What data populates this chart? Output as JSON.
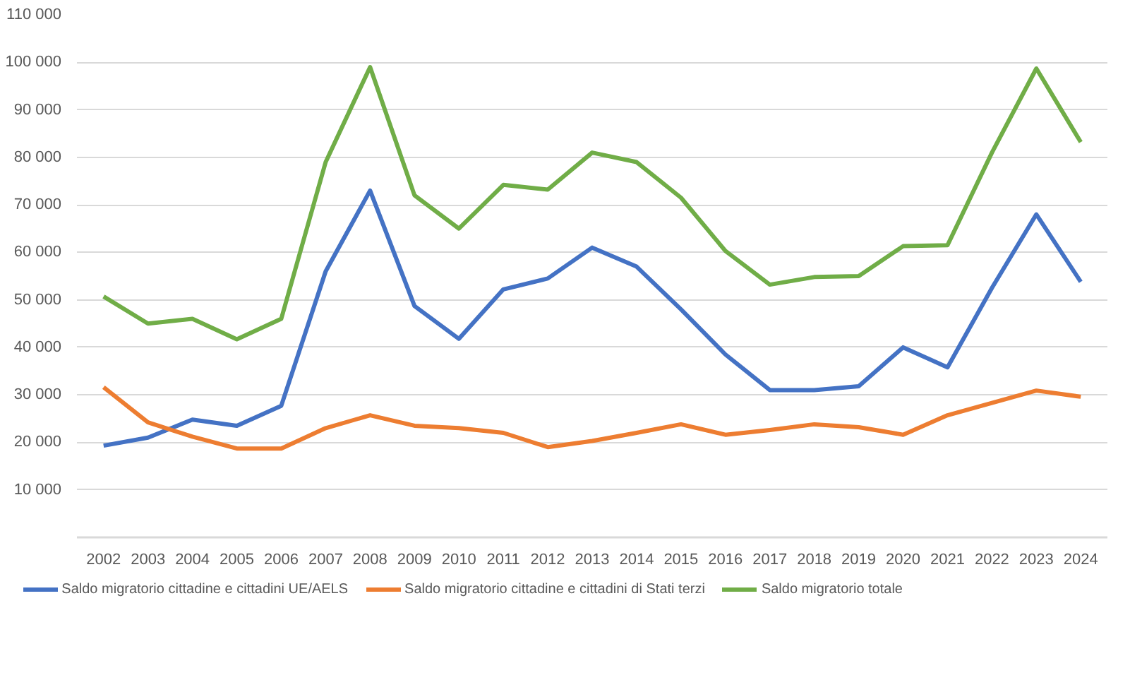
{
  "chart_data": {
    "type": "line",
    "categories": [
      "2002",
      "2003",
      "2004",
      "2005",
      "2006",
      "2007",
      "2008",
      "2009",
      "2010",
      "2011",
      "2012",
      "2013",
      "2014",
      "2015",
      "2016",
      "2017",
      "2018",
      "2019",
      "2020",
      "2021",
      "2022",
      "2023",
      "2024"
    ],
    "series": [
      {
        "name": "Saldo migratorio cittadine e cittadini UE/AELS",
        "color": "#4472c4",
        "values": [
          19300,
          21000,
          24800,
          23500,
          27700,
          56000,
          73000,
          48700,
          41800,
          52200,
          54500,
          61000,
          57000,
          48000,
          38500,
          31000,
          31000,
          31800,
          40000,
          35800,
          52500,
          68000,
          53800
        ]
      },
      {
        "name": "Saldo migratorio cittadine e cittadini di Stati terzi",
        "color": "#ed7d31",
        "values": [
          31600,
          24200,
          21200,
          18700,
          18700,
          23000,
          25700,
          23500,
          23000,
          22000,
          19000,
          20300,
          22000,
          23800,
          21600,
          22600,
          23800,
          23200,
          21600,
          25700,
          28300,
          30900,
          29600
        ]
      },
      {
        "name": "Saldo migratorio totale",
        "color": "#70ad47",
        "values": [
          50700,
          45000,
          46000,
          41700,
          46000,
          79000,
          99000,
          72000,
          65000,
          74200,
          73200,
          81000,
          79000,
          71500,
          60300,
          53200,
          54800,
          55000,
          61300,
          61500,
          81000,
          98700,
          83200
        ]
      }
    ],
    "ylim": [
      0,
      110000
    ],
    "yticks": [
      {
        "value": 0,
        "label": null
      },
      {
        "value": 10000,
        "label": "10 000"
      },
      {
        "value": 20000,
        "label": "20 000"
      },
      {
        "value": 30000,
        "label": "30 000"
      },
      {
        "value": 40000,
        "label": "40 000"
      },
      {
        "value": 50000,
        "label": "50 000"
      },
      {
        "value": 60000,
        "label": "60 000"
      },
      {
        "value": 70000,
        "label": "70 000"
      },
      {
        "value": 80000,
        "label": "80 000"
      },
      {
        "value": 90000,
        "label": "90 000"
      },
      {
        "value": 100000,
        "label": "100 000"
      },
      {
        "value": 110000,
        "label": "110 000"
      }
    ],
    "grid": "y",
    "legend": "bottom",
    "marker": "none",
    "line_style": "solid"
  }
}
